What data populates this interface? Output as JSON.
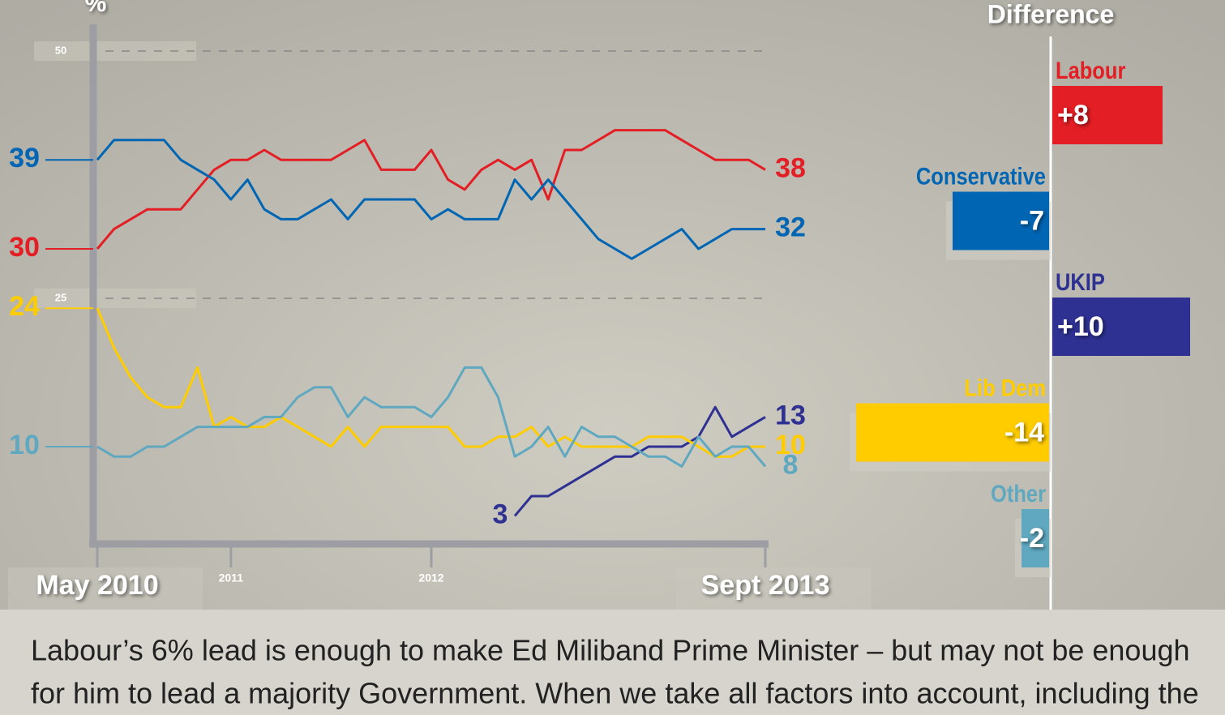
{
  "chart_data": [
    {
      "type": "line",
      "y_label": "%",
      "categories": [
        "May 2010",
        null,
        null,
        null,
        null,
        null,
        null,
        null,
        "2011",
        null,
        null,
        null,
        null,
        null,
        null,
        null,
        null,
        null,
        null,
        null,
        "2012",
        null,
        null,
        null,
        null,
        null,
        null,
        null,
        null,
        null,
        null,
        null,
        null,
        null,
        null,
        null,
        null,
        null,
        null,
        null,
        "Sept 2013"
      ],
      "series": [
        {
          "name": "Labour",
          "color": "#e31e24",
          "values": [
            30,
            32,
            33,
            34,
            34,
            34,
            36,
            38,
            39,
            39,
            40,
            39,
            39,
            39,
            39,
            40,
            41,
            38,
            38,
            38,
            40,
            37,
            36,
            38,
            39,
            38,
            39,
            35,
            40,
            40,
            41,
            42,
            42,
            42,
            42,
            41,
            40,
            39,
            39,
            39,
            38
          ]
        },
        {
          "name": "Conservative",
          "color": "#0065b3",
          "values": [
            39,
            41,
            41,
            41,
            41,
            39,
            38,
            37,
            35,
            37,
            34,
            33,
            33,
            34,
            35,
            33,
            35,
            35,
            35,
            35,
            33,
            34,
            33,
            33,
            33,
            37,
            35,
            37,
            35,
            33,
            31,
            30,
            29,
            30,
            31,
            32,
            30,
            31,
            32,
            32,
            32
          ]
        },
        {
          "name": "UKIP",
          "color": "#2e3192",
          "values": [
            null,
            null,
            null,
            null,
            null,
            null,
            null,
            null,
            null,
            null,
            null,
            null,
            null,
            null,
            null,
            null,
            null,
            null,
            null,
            null,
            null,
            null,
            null,
            null,
            null,
            3,
            5,
            5,
            6,
            7,
            8,
            9,
            9,
            10,
            10,
            10,
            11,
            14,
            11,
            12,
            13
          ]
        },
        {
          "name": "Lib Dem",
          "color": "#ffcc00",
          "values": [
            24,
            20,
            17,
            15,
            14,
            14,
            18,
            12,
            13,
            12,
            12,
            13,
            12,
            11,
            10,
            12,
            10,
            12,
            12,
            12,
            12,
            12,
            10,
            10,
            11,
            11,
            12,
            10,
            11,
            10,
            10,
            10,
            10,
            11,
            11,
            11,
            10,
            9,
            9,
            10,
            10
          ]
        },
        {
          "name": "Other",
          "color": "#5fa8c0",
          "values": [
            10,
            9,
            9,
            10,
            10,
            11,
            12,
            12,
            12,
            12,
            13,
            13,
            15,
            16,
            16,
            13,
            15,
            14,
            14,
            14,
            13,
            15,
            18,
            18,
            15,
            9,
            10,
            12,
            9,
            12,
            11,
            11,
            10,
            9,
            9,
            8,
            11,
            9,
            10,
            10,
            8
          ]
        }
      ],
      "ylim": [
        0,
        52
      ],
      "yticks": [
        25,
        50
      ],
      "grid": true
    },
    {
      "type": "hbar",
      "title": "Difference",
      "categories": [
        "Labour",
        "Conservative",
        "UKIP",
        "Lib Dem",
        "Other"
      ],
      "values": [
        8,
        -7,
        10,
        -14,
        -2
      ],
      "value_labels": [
        "+8",
        "-7",
        "+10",
        "-14",
        "-2"
      ],
      "colors": [
        "#e31e24",
        "#0065b3",
        "#2e3192",
        "#ffcc00",
        "#5fa8c0"
      ]
    }
  ],
  "caption": {
    "lines": [
      "Labour’s 6% lead is enough to make Ed Miliband Prime Minister – but may not be enough",
      "for him to lead a majority Government. When we take all factors into account, including the"
    ]
  }
}
